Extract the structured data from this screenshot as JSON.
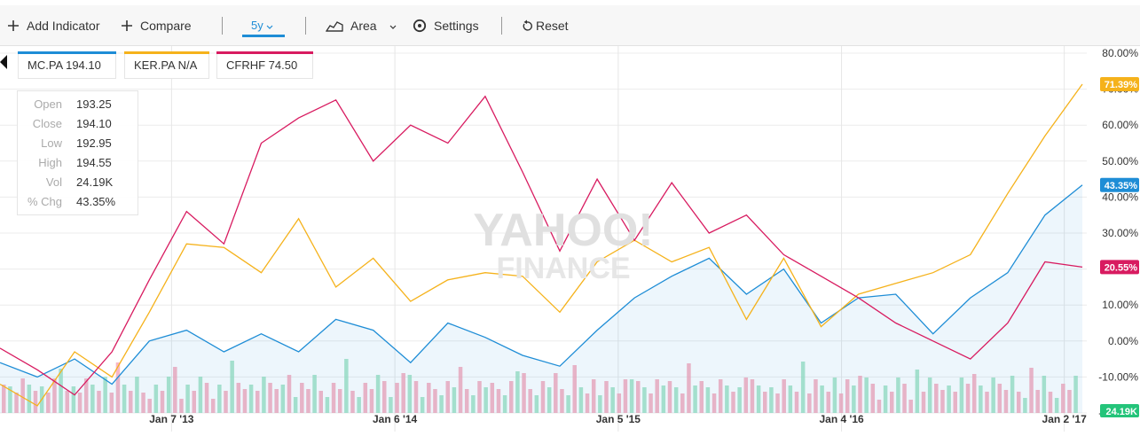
{
  "toolbar": {
    "add_indicator": "Add Indicator",
    "compare": "Compare",
    "range": "5y",
    "chart_type": "Area",
    "settings": "Settings",
    "reset": "Reset"
  },
  "legend": [
    {
      "label": "MC.PA 194.10",
      "color": "#1e8dd6"
    },
    {
      "label": "KER.PA N/A",
      "color": "#f5b21b"
    },
    {
      "label": "CFRHF 74.50",
      "color": "#d81b60"
    }
  ],
  "ohlc": [
    {
      "key": "Open",
      "value": "193.25"
    },
    {
      "key": "Close",
      "value": "194.10"
    },
    {
      "key": "Low",
      "value": "192.95"
    },
    {
      "key": "High",
      "value": "194.55"
    },
    {
      "key": "Vol",
      "value": "24.19K"
    },
    {
      "key": "% Chg",
      "value": "43.35%"
    }
  ],
  "watermark": [
    "YAHOO!",
    "FINANCE"
  ],
  "chart_data": {
    "type": "line",
    "x_range": [
      "2012-04",
      "2017-02"
    ],
    "y_range": [
      -20,
      80
    ],
    "y_ticks": [
      "80.00%",
      "70.00%",
      "60.00%",
      "50.00%",
      "40.00%",
      "30.00%",
      "20.00%",
      "10.00%",
      "0.00%",
      "-10.00%",
      "-20.00%"
    ],
    "y_tick_values": [
      80,
      70,
      60,
      50,
      40,
      30,
      20,
      10,
      0,
      -10,
      -20
    ],
    "x_ticks": [
      {
        "label": "Jan 7 '13",
        "date": "2013-01-07"
      },
      {
        "label": "Jan 6 '14",
        "date": "2014-01-06"
      },
      {
        "label": "Jan 5 '15",
        "date": "2015-01-05"
      },
      {
        "label": "Jan 4 '16",
        "date": "2016-01-04"
      },
      {
        "label": "Jan 2 '17",
        "date": "2017-01-02"
      }
    ],
    "grid": true,
    "series": [
      {
        "name": "MC.PA",
        "color": "#1e8dd6",
        "area": true,
        "last_label": "43.35%",
        "points": [
          [
            "2012-04",
            -6
          ],
          [
            "2012-06",
            -10
          ],
          [
            "2012-08",
            -5
          ],
          [
            "2012-10",
            -12
          ],
          [
            "2012-12",
            0
          ],
          [
            "2013-02",
            3
          ],
          [
            "2013-04",
            -3
          ],
          [
            "2013-06",
            2
          ],
          [
            "2013-08",
            -3
          ],
          [
            "2013-10",
            6
          ],
          [
            "2013-12",
            3
          ],
          [
            "2014-02",
            -6
          ],
          [
            "2014-04",
            5
          ],
          [
            "2014-06",
            1
          ],
          [
            "2014-08",
            -4
          ],
          [
            "2014-10",
            -7
          ],
          [
            "2014-12",
            3
          ],
          [
            "2015-02",
            12
          ],
          [
            "2015-04",
            18
          ],
          [
            "2015-06",
            23
          ],
          [
            "2015-08",
            13
          ],
          [
            "2015-10",
            20
          ],
          [
            "2015-12",
            5
          ],
          [
            "2016-02",
            12
          ],
          [
            "2016-04",
            13
          ],
          [
            "2016-06",
            2
          ],
          [
            "2016-08",
            12
          ],
          [
            "2016-10",
            19
          ],
          [
            "2016-12",
            35
          ],
          [
            "2017-02",
            43.35
          ]
        ]
      },
      {
        "name": "KER.PA",
        "color": "#f5b21b",
        "area": false,
        "last_label": "71.39%",
        "points": [
          [
            "2012-04",
            -12
          ],
          [
            "2012-06",
            -18
          ],
          [
            "2012-08",
            -3
          ],
          [
            "2012-10",
            -10
          ],
          [
            "2012-12",
            8
          ],
          [
            "2013-02",
            27
          ],
          [
            "2013-04",
            26
          ],
          [
            "2013-06",
            19
          ],
          [
            "2013-08",
            34
          ],
          [
            "2013-10",
            15
          ],
          [
            "2013-12",
            23
          ],
          [
            "2014-02",
            11
          ],
          [
            "2014-04",
            17
          ],
          [
            "2014-06",
            19
          ],
          [
            "2014-08",
            18
          ],
          [
            "2014-10",
            8
          ],
          [
            "2014-12",
            22
          ],
          [
            "2015-02",
            28
          ],
          [
            "2015-04",
            22
          ],
          [
            "2015-06",
            26
          ],
          [
            "2015-08",
            6
          ],
          [
            "2015-10",
            23
          ],
          [
            "2015-12",
            4
          ],
          [
            "2016-02",
            13
          ],
          [
            "2016-04",
            16
          ],
          [
            "2016-06",
            19
          ],
          [
            "2016-08",
            24
          ],
          [
            "2016-10",
            41
          ],
          [
            "2016-12",
            57
          ],
          [
            "2017-02",
            71.39
          ]
        ]
      },
      {
        "name": "CFRHF",
        "color": "#d81b60",
        "area": false,
        "last_label": "20.55%",
        "points": [
          [
            "2012-04",
            -2
          ],
          [
            "2012-06",
            -8
          ],
          [
            "2012-08",
            -15
          ],
          [
            "2012-10",
            -3
          ],
          [
            "2012-12",
            17
          ],
          [
            "2013-02",
            36
          ],
          [
            "2013-04",
            27
          ],
          [
            "2013-06",
            55
          ],
          [
            "2013-08",
            62
          ],
          [
            "2013-10",
            67
          ],
          [
            "2013-12",
            50
          ],
          [
            "2014-02",
            60
          ],
          [
            "2014-04",
            55
          ],
          [
            "2014-06",
            68
          ],
          [
            "2014-08",
            47
          ],
          [
            "2014-10",
            25
          ],
          [
            "2014-12",
            45
          ],
          [
            "2015-02",
            28
          ],
          [
            "2015-04",
            44
          ],
          [
            "2015-06",
            30
          ],
          [
            "2015-08",
            35
          ],
          [
            "2015-10",
            24
          ],
          [
            "2015-12",
            18
          ],
          [
            "2016-02",
            12
          ],
          [
            "2016-04",
            5
          ],
          [
            "2016-06",
            0
          ],
          [
            "2016-08",
            -5
          ],
          [
            "2016-10",
            5
          ],
          [
            "2016-12",
            22
          ],
          [
            "2017-02",
            20.55
          ]
        ]
      }
    ],
    "volume_label": "24.19K"
  }
}
